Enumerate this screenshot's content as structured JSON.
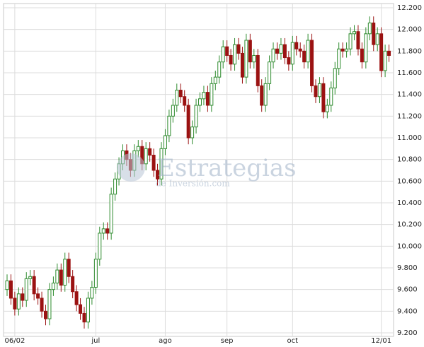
{
  "chart_data": {
    "type": "candlestick",
    "watermark": {
      "title": "Estrategias",
      "subtitle": "de Inversión.com"
    },
    "categories": [
      null,
      null,
      "06/02",
      null,
      null,
      null,
      null,
      null,
      null,
      null,
      null,
      null,
      null,
      null,
      null,
      null,
      null,
      null,
      null,
      null,
      null,
      null,
      null,
      "jul",
      null,
      null,
      null,
      null,
      null,
      null,
      null,
      null,
      null,
      null,
      null,
      null,
      null,
      null,
      null,
      null,
      null,
      "ago",
      null,
      null,
      null,
      null,
      null,
      null,
      null,
      null,
      null,
      null,
      null,
      null,
      null,
      null,
      null,
      "sep",
      null,
      null,
      null,
      null,
      null,
      null,
      null,
      null,
      null,
      null,
      null,
      null,
      null,
      null,
      null,
      null,
      "oct",
      null,
      null,
      null,
      null,
      null,
      null,
      null,
      null,
      null,
      null,
      null,
      null,
      null,
      null,
      null,
      null,
      null,
      null,
      null,
      null,
      null,
      null,
      "12/01",
      null,
      null
    ],
    "open": [
      9600,
      9680,
      9520,
      9420,
      9560,
      9500,
      9700,
      9720,
      9560,
      9520,
      9400,
      9330,
      9600,
      9660,
      9780,
      9640,
      9880,
      9720,
      9580,
      9460,
      9380,
      9300,
      9520,
      9620,
      9880,
      10120,
      10160,
      10120,
      10480,
      10620,
      10760,
      10880,
      10800,
      10700,
      10880,
      10920,
      10760,
      10900,
      10840,
      10700,
      10620,
      10900,
      11020,
      11200,
      11300,
      11440,
      11380,
      11300,
      11000,
      11100,
      11300,
      11360,
      11420,
      11300,
      11500,
      11560,
      11700,
      11840,
      11760,
      11680,
      11860,
      11780,
      11560,
      11900,
      11700,
      11760,
      11480,
      11300,
      11500,
      11700,
      11820,
      11780,
      11860,
      11740,
      11680,
      11880,
      11820,
      11800,
      11700,
      11900,
      11480,
      11380,
      11500,
      11240,
      11300,
      11460,
      11640,
      11820,
      11800,
      11820,
      11960,
      11980,
      11820,
      11700,
      11960,
      12060,
      11860,
      11960,
      11620,
      11800
    ],
    "high": [
      9740,
      9740,
      9580,
      9620,
      9620,
      9760,
      9780,
      9780,
      9620,
      9580,
      9460,
      9660,
      9720,
      9840,
      9840,
      9940,
      9940,
      9780,
      9640,
      9520,
      9440,
      9580,
      9680,
      9940,
      10180,
      10220,
      10220,
      10540,
      10680,
      10820,
      10940,
      10940,
      10860,
      10940,
      10980,
      10980,
      10960,
      10960,
      10900,
      10760,
      10960,
      11080,
      11260,
      11360,
      11500,
      11500,
      11440,
      11360,
      11160,
      11360,
      11420,
      11480,
      11480,
      11560,
      11620,
      11760,
      11900,
      11900,
      11820,
      11920,
      11920,
      11840,
      11960,
      11960,
      11820,
      11820,
      11540,
      11560,
      11760,
      11880,
      11880,
      11920,
      11920,
      11800,
      11940,
      11940,
      11880,
      11860,
      11960,
      11960,
      11540,
      11560,
      11560,
      11360,
      11520,
      11700,
      11880,
      11880,
      11880,
      12020,
      12040,
      12040,
      11880,
      12020,
      12120,
      12120,
      12020,
      12020,
      11860,
      11860
    ],
    "low": [
      9540,
      9460,
      9360,
      9360,
      9440,
      9440,
      9640,
      9500,
      9460,
      9340,
      9270,
      9270,
      9540,
      9600,
      9580,
      9580,
      9660,
      9520,
      9400,
      9320,
      9240,
      9240,
      9460,
      9560,
      9820,
      10060,
      10060,
      10060,
      10420,
      10560,
      10700,
      10740,
      10640,
      10640,
      10820,
      10700,
      10700,
      10780,
      10640,
      10560,
      10560,
      10840,
      10960,
      11140,
      11240,
      11320,
      11240,
      10940,
      10940,
      11040,
      11240,
      11300,
      11240,
      11240,
      11440,
      11500,
      11640,
      11700,
      11620,
      11620,
      11720,
      11500,
      11500,
      11640,
      11640,
      11420,
      11240,
      11240,
      11440,
      11640,
      11720,
      11720,
      11680,
      11620,
      11620,
      11760,
      11740,
      11640,
      11640,
      11420,
      11320,
      11320,
      11180,
      11180,
      11240,
      11400,
      11580,
      11740,
      11740,
      11760,
      11900,
      11760,
      11640,
      11640,
      11900,
      11800,
      11800,
      11560,
      11560,
      11700
    ],
    "close": [
      9680,
      9520,
      9420,
      9560,
      9500,
      9700,
      9720,
      9560,
      9520,
      9400,
      9330,
      9600,
      9660,
      9780,
      9640,
      9880,
      9720,
      9580,
      9460,
      9380,
      9300,
      9520,
      9620,
      9880,
      10120,
      10160,
      10120,
      10480,
      10620,
      10760,
      10880,
      10800,
      10700,
      10880,
      10920,
      10760,
      10900,
      10840,
      10700,
      10620,
      10900,
      11020,
      11200,
      11300,
      11440,
      11380,
      11300,
      11000,
      11100,
      11300,
      11360,
      11420,
      11300,
      11500,
      11560,
      11700,
      11840,
      11760,
      11680,
      11860,
      11780,
      11560,
      11900,
      11700,
      11760,
      11480,
      11300,
      11500,
      11700,
      11820,
      11780,
      11860,
      11740,
      11680,
      11880,
      11820,
      11800,
      11700,
      11900,
      11480,
      11380,
      11500,
      11240,
      11300,
      11460,
      11640,
      11820,
      11800,
      11820,
      11960,
      11980,
      11820,
      11700,
      11960,
      12060,
      11860,
      11960,
      11620,
      11800,
      11760
    ],
    "up_color": "#2e8b2e",
    "down_color": "#9b1212",
    "ylim": [
      9200,
      12200
    ],
    "yticks": [
      {
        "value": 9200,
        "label": "9.200"
      },
      {
        "value": 9400,
        "label": "9.400"
      },
      {
        "value": 9600,
        "label": "9.600"
      },
      {
        "value": 9800,
        "label": "9.800"
      },
      {
        "value": 10000,
        "label": "10.000"
      },
      {
        "value": 10200,
        "label": "10.200"
      },
      {
        "value": 10400,
        "label": "10.400"
      },
      {
        "value": 10600,
        "label": "10.600"
      },
      {
        "value": 10800,
        "label": "10.800"
      },
      {
        "value": 11000,
        "label": "11.000"
      },
      {
        "value": 11200,
        "label": "11.200"
      },
      {
        "value": 11400,
        "label": "11.400"
      },
      {
        "value": 11600,
        "label": "11.600"
      },
      {
        "value": 11800,
        "label": "11.800"
      },
      {
        "value": 12000,
        "label": "12.000"
      },
      {
        "value": 12200,
        "label": "12.200"
      }
    ],
    "grid": true
  }
}
